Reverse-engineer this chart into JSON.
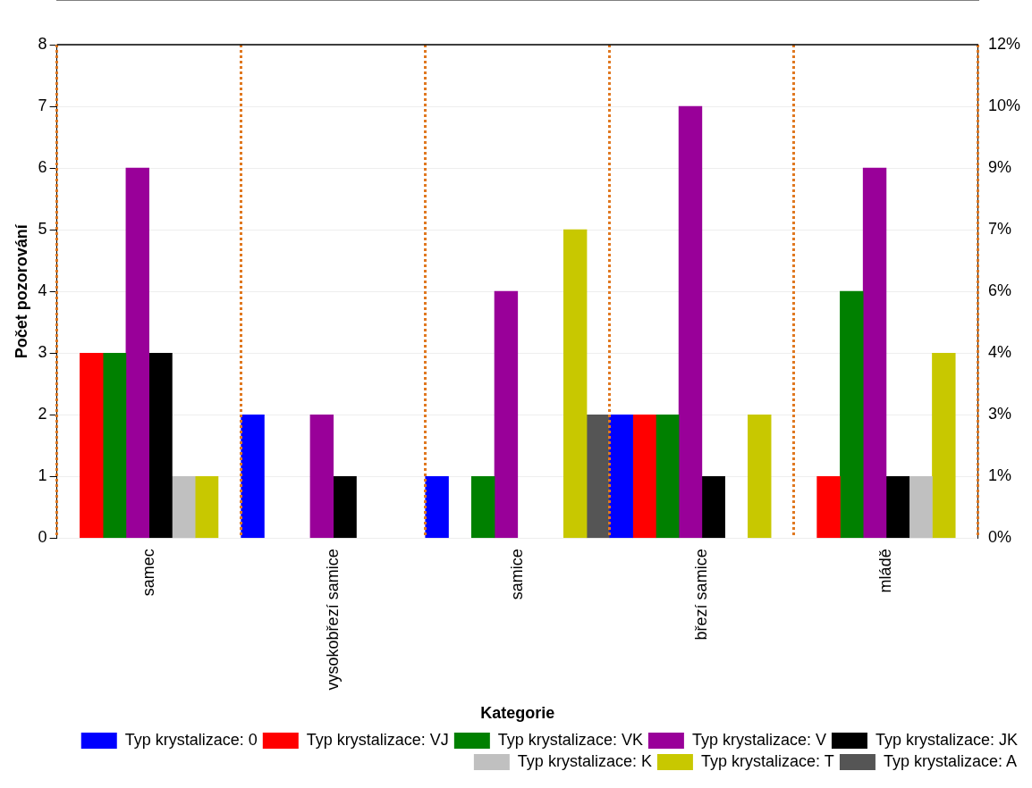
{
  "chart_data": {
    "type": "bar",
    "xlabel": "Kategorie",
    "ylabel": "Počet pozorování",
    "categories": [
      "samec",
      "vysokobřezí samice",
      "samice",
      "březí samice",
      "mládě"
    ],
    "series": [
      {
        "name": "Typ krystalizace: 0",
        "color": "#0000ff",
        "values": [
          null,
          2,
          1,
          2,
          null
        ]
      },
      {
        "name": "Typ krystalizace: VJ",
        "color": "#ff0000",
        "values": [
          3,
          null,
          null,
          2,
          1
        ]
      },
      {
        "name": "Typ krystalizace: VK",
        "color": "#008000",
        "values": [
          3,
          null,
          1,
          2,
          4
        ]
      },
      {
        "name": "Typ krystalizace: V",
        "color": "#990099",
        "values": [
          6,
          2,
          4,
          7,
          6
        ]
      },
      {
        "name": "Typ krystalizace: JK",
        "color": "#000000",
        "values": [
          3,
          1,
          null,
          1,
          1
        ]
      },
      {
        "name": "Typ krystalizace: K",
        "color": "#c0c0c0",
        "values": [
          1,
          null,
          null,
          null,
          1
        ]
      },
      {
        "name": "Typ krystalizace: T",
        "color": "#c8c800",
        "values": [
          1,
          null,
          5,
          2,
          3
        ]
      },
      {
        "name": "Typ krystalizace: A",
        "color": "#555555",
        "values": [
          null,
          null,
          2,
          null,
          null
        ]
      }
    ],
    "ylim": [
      0,
      8
    ],
    "yticks": [
      0,
      1,
      2,
      3,
      4,
      5,
      6,
      7,
      8
    ],
    "y2lim": [
      0,
      11.94
    ],
    "y2ticks": [
      {
        "value": 0,
        "label": "0%"
      },
      {
        "value": 1.49,
        "label": "1%"
      },
      {
        "value": 2.99,
        "label": "3%"
      },
      {
        "value": 4.48,
        "label": "4%"
      },
      {
        "value": 5.97,
        "label": "6%"
      },
      {
        "value": 7.46,
        "label": "7%"
      },
      {
        "value": 8.96,
        "label": "9%"
      },
      {
        "value": 10.45,
        "label": "10%"
      },
      {
        "value": 11.94,
        "label": "12%"
      }
    ],
    "grid": true,
    "legend": "bottom right"
  }
}
